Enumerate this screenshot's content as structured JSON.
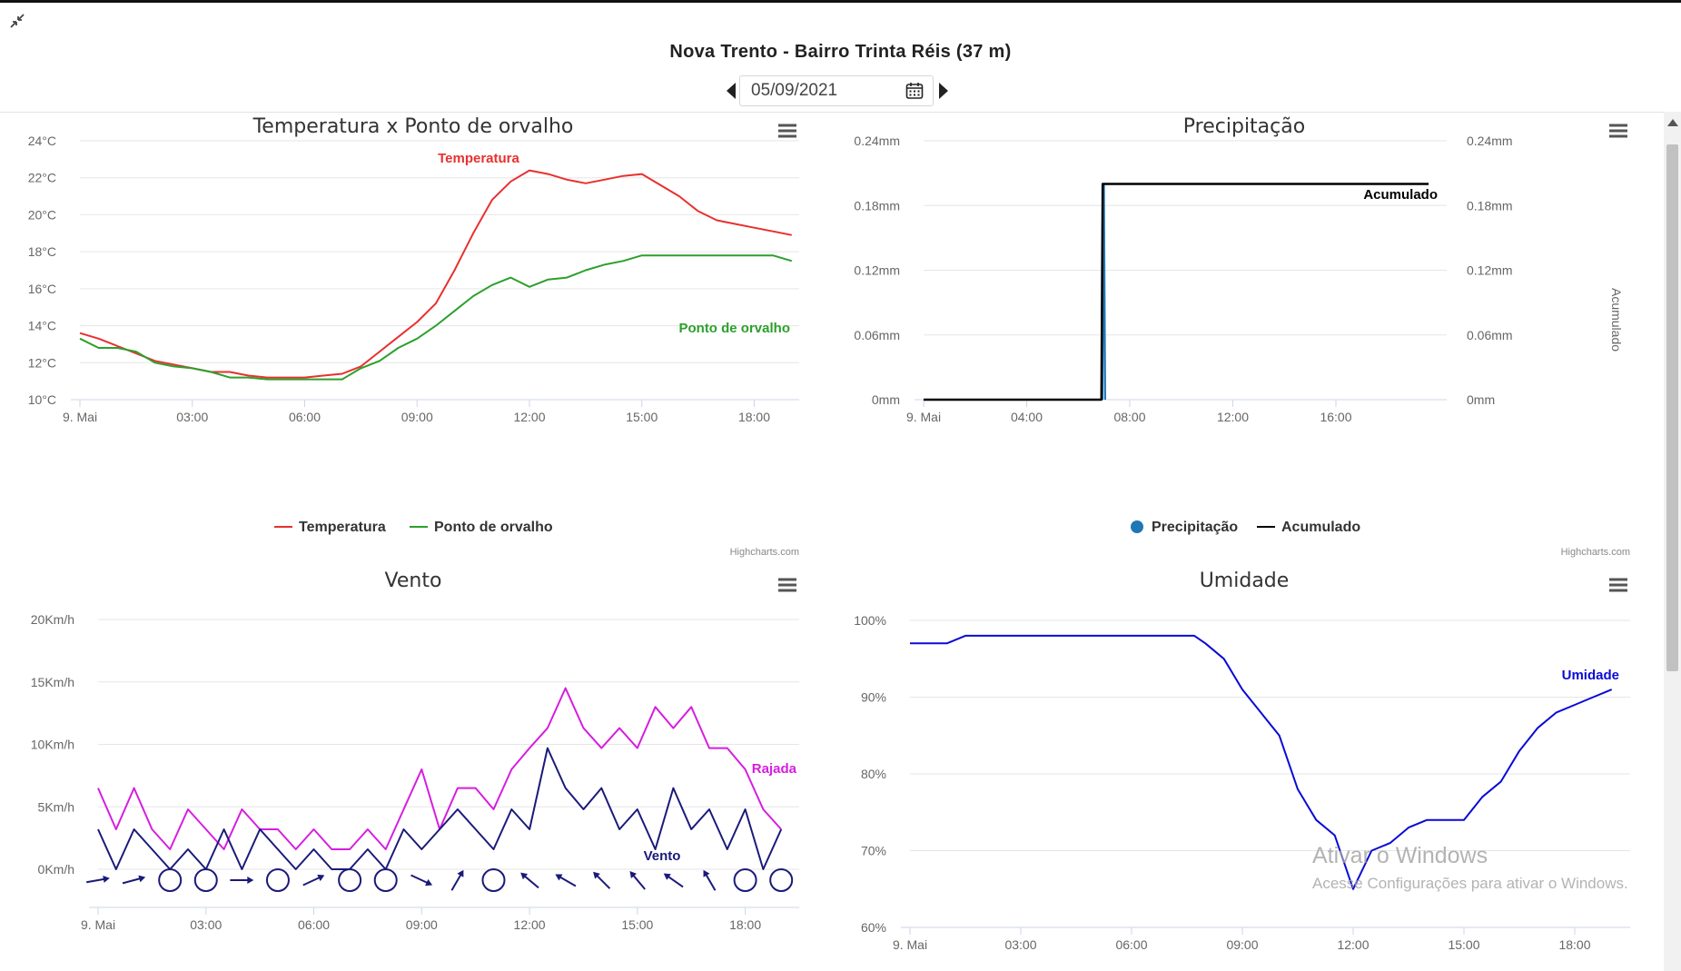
{
  "page": {
    "title": "Nova Trento - Bairro Trinta Réis (37 m)",
    "date": "05/09/2021",
    "credits": "Highcharts.com",
    "watermark_line1": "Ativar o Windows",
    "watermark_line2": "Acesse Configurações para ativar o Windows."
  },
  "chart_data": [
    {
      "id": "temp",
      "type": "line",
      "title": "Temperatura x Ponto de orvalho",
      "xlim": [
        0,
        19.2
      ],
      "xticks": [
        0,
        3,
        6,
        9,
        12,
        15,
        18
      ],
      "xticklabels": [
        "9. Mai",
        "03:00",
        "06:00",
        "09:00",
        "12:00",
        "15:00",
        "18:00"
      ],
      "ylim": [
        10,
        24
      ],
      "yticks": [
        10,
        12,
        14,
        16,
        18,
        20,
        22,
        24
      ],
      "yticklabels": [
        "10°C",
        "12°C",
        "14°C",
        "16°C",
        "18°C",
        "20°C",
        "22°C",
        "24°C"
      ],
      "legend_position": "bottom-center",
      "series": [
        {
          "name": "Temperatura",
          "color": "#e8302f",
          "x": [
            0,
            0.5,
            1,
            1.5,
            2,
            2.5,
            3,
            3.5,
            4,
            4.5,
            5,
            5.5,
            6,
            6.5,
            7,
            7.5,
            8,
            8.5,
            9,
            9.5,
            10,
            10.5,
            11,
            11.5,
            12,
            12.5,
            13,
            13.5,
            14,
            14.5,
            15,
            15.5,
            16,
            16.5,
            17,
            17.5,
            18,
            18.5,
            19
          ],
          "values": [
            13.6,
            13.3,
            12.9,
            12.5,
            12.1,
            11.9,
            11.7,
            11.5,
            11.5,
            11.3,
            11.2,
            11.2,
            11.2,
            11.3,
            11.4,
            11.8,
            12.6,
            13.4,
            14.2,
            15.2,
            17.0,
            19.0,
            20.8,
            21.8,
            22.4,
            22.2,
            21.9,
            21.7,
            21.9,
            22.1,
            22.2,
            21.6,
            21.0,
            20.2,
            19.7,
            19.5,
            19.3,
            19.1,
            18.9
          ]
        },
        {
          "name": "Ponto de orvalho",
          "color": "#2ca02c",
          "x": [
            0,
            0.5,
            1,
            1.5,
            2,
            2.5,
            3,
            3.5,
            4,
            4.5,
            5,
            5.5,
            6,
            6.5,
            7,
            7.5,
            8,
            8.5,
            9,
            9.5,
            10,
            10.5,
            11,
            11.5,
            12,
            12.5,
            13,
            13.5,
            14,
            14.5,
            15,
            15.5,
            16,
            16.5,
            17,
            17.5,
            18,
            18.5,
            19
          ],
          "values": [
            13.3,
            12.8,
            12.8,
            12.6,
            12.0,
            11.8,
            11.7,
            11.5,
            11.2,
            11.2,
            11.1,
            11.1,
            11.1,
            11.1,
            11.1,
            11.7,
            12.1,
            12.8,
            13.3,
            14.0,
            14.8,
            15.6,
            16.2,
            16.6,
            16.1,
            16.5,
            16.6,
            17.0,
            17.3,
            17.5,
            17.8,
            17.8,
            17.8,
            17.8,
            17.8,
            17.8,
            17.8,
            17.8,
            17.5
          ]
        }
      ]
    },
    {
      "id": "precip",
      "type": "line",
      "title": "Precipitação",
      "xlim": [
        0,
        20.3
      ],
      "xticks": [
        0,
        4,
        8,
        12,
        16
      ],
      "xticklabels": [
        "9. Mai",
        "04:00",
        "08:00",
        "12:00",
        "16:00"
      ],
      "ylim": [
        0,
        0.24
      ],
      "yticks": [
        0,
        0.06,
        0.12,
        0.18,
        0.24
      ],
      "yticklabels": [
        "0mm",
        "0.06mm",
        "0.12mm",
        "0.18mm",
        "0.24mm"
      ],
      "y2label": "Acumulado",
      "legend_position": "bottom-center",
      "series": [
        {
          "name": "Precipitação",
          "color": "#1f77b4",
          "x": [
            6.95,
            7.0,
            7.05
          ],
          "values": [
            0,
            0.2,
            0
          ]
        },
        {
          "name": "Acumulado",
          "color": "#000000",
          "x": [
            0,
            6.9,
            6.95,
            19.6
          ],
          "values": [
            0,
            0,
            0.2,
            0.2
          ]
        }
      ]
    },
    {
      "id": "wind",
      "type": "line",
      "title": "Vento",
      "xlim": [
        0,
        19.5
      ],
      "xticks": [
        0,
        3,
        6,
        9,
        12,
        15,
        18
      ],
      "xticklabels": [
        "9. Mai",
        "03:00",
        "06:00",
        "09:00",
        "12:00",
        "15:00",
        "18:00"
      ],
      "ylim": [
        0,
        20
      ],
      "yticks": [
        0,
        5,
        10,
        15,
        20
      ],
      "yticklabels": [
        "0Km/h",
        "5Km/h",
        "10Km/h",
        "15Km/h",
        "20Km/h"
      ],
      "series": [
        {
          "name": "Rajada",
          "color": "#d61de0",
          "x": [
            0,
            0.5,
            1,
            1.5,
            2,
            2.5,
            3,
            3.5,
            4,
            4.5,
            5,
            5.5,
            6,
            6.5,
            7,
            7.5,
            8,
            8.5,
            9,
            9.5,
            10,
            10.5,
            11,
            11.5,
            12,
            12.5,
            13,
            13.5,
            14,
            14.5,
            15,
            15.5,
            16,
            16.5,
            17,
            17.5,
            18,
            18.5,
            19
          ],
          "values": [
            6.5,
            3.2,
            6.5,
            3.2,
            1.6,
            4.8,
            3.2,
            1.6,
            4.8,
            3.2,
            3.2,
            1.6,
            3.2,
            1.6,
            1.6,
            3.2,
            1.6,
            4.8,
            8.0,
            3.2,
            6.5,
            6.5,
            4.8,
            8.0,
            9.7,
            11.3,
            14.5,
            11.3,
            9.7,
            11.3,
            9.7,
            13.0,
            11.3,
            13.0,
            9.7,
            9.7,
            8.0,
            4.8,
            3.2
          ]
        },
        {
          "name": "Vento",
          "color": "#1a1a7a",
          "x": [
            0,
            0.5,
            1,
            1.5,
            2,
            2.5,
            3,
            3.5,
            4,
            4.5,
            5,
            5.5,
            6,
            6.5,
            7,
            7.5,
            8,
            8.5,
            9,
            9.5,
            10,
            10.5,
            11,
            11.5,
            12,
            12.5,
            13,
            13.5,
            14,
            14.5,
            15,
            15.5,
            16,
            16.5,
            17,
            17.5,
            18,
            18.5,
            19
          ],
          "values": [
            3.2,
            0,
            3.2,
            1.6,
            0,
            1.6,
            0,
            3.2,
            0,
            3.2,
            1.6,
            0,
            1.6,
            0,
            0,
            1.6,
            0,
            3.2,
            1.6,
            3.2,
            4.8,
            3.2,
            1.6,
            4.8,
            3.2,
            9.7,
            6.5,
            4.8,
            6.5,
            3.2,
            4.8,
            1.6,
            6.5,
            3.2,
            4.8,
            1.6,
            4.8,
            0,
            3.2
          ]
        }
      ],
      "direction_arrows_hours": [
        0,
        1,
        2,
        3,
        4,
        5,
        6,
        7,
        8,
        9,
        10,
        11,
        12,
        13,
        14,
        15,
        16,
        17,
        18,
        19
      ],
      "direction_arrows_type": [
        "arrow",
        "arrow",
        "calm",
        "calm",
        "arrow",
        "calm",
        "arrow",
        "calm",
        "calm",
        "arrow",
        "arrow",
        "calm",
        "arrow",
        "arrow",
        "arrow",
        "arrow",
        "arrow",
        "arrow",
        "calm",
        "calm"
      ],
      "direction_arrows_angle": [
        -10,
        -15,
        0,
        0,
        0,
        0,
        -25,
        0,
        0,
        25,
        -60,
        0,
        -140,
        -150,
        -135,
        -130,
        -145,
        -120,
        0,
        0
      ]
    },
    {
      "id": "hum",
      "type": "line",
      "title": "Umidade",
      "xlim": [
        0,
        19.5
      ],
      "xticks": [
        0,
        3,
        6,
        9,
        12,
        15,
        18
      ],
      "xticklabels": [
        "9. Mai",
        "03:00",
        "06:00",
        "09:00",
        "12:00",
        "15:00",
        "18:00"
      ],
      "ylim": [
        60,
        100
      ],
      "yticks": [
        60,
        70,
        80,
        90,
        100
      ],
      "yticklabels": [
        "60%",
        "70%",
        "80%",
        "90%",
        "100%"
      ],
      "series": [
        {
          "name": "Umidade",
          "color": "#0a0ad6",
          "x": [
            0,
            1,
            1.5,
            2,
            3,
            4,
            5,
            6,
            7,
            7.7,
            8,
            8.5,
            9,
            9.5,
            10,
            10.5,
            11,
            11.5,
            12,
            12.5,
            13,
            13.5,
            14,
            14.5,
            15,
            15.5,
            16,
            16.5,
            17,
            17.5,
            18,
            18.5,
            19
          ],
          "values": [
            97,
            97,
            98,
            98,
            98,
            98,
            98,
            98,
            98,
            98,
            97,
            95,
            91,
            88,
            85,
            78,
            74,
            72,
            65,
            70,
            71,
            73,
            74,
            74,
            74,
            77,
            79,
            83,
            86,
            88,
            89,
            90,
            91
          ]
        }
      ]
    }
  ]
}
